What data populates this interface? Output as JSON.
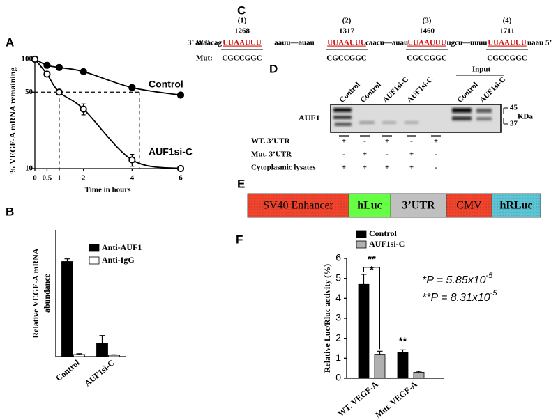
{
  "chart_data": [
    {
      "type": "line",
      "panel_label": "A",
      "y_label": "% VEGF-A mRNA remaining",
      "x_label": "Time in hours",
      "log_y": true,
      "x": [
        0,
        0.5,
        1,
        2,
        4,
        6
      ],
      "series": [
        {
          "name": "Control",
          "color": "#000000",
          "marker": "filled",
          "values": [
            100,
            88,
            84,
            77,
            55,
            47
          ],
          "errors": [
            0,
            0,
            0,
            0,
            1.5,
            2.5
          ]
        },
        {
          "name": "AUF1si-C",
          "color": "#000000",
          "marker": "open",
          "values": [
            100,
            73,
            50,
            35,
            12,
            10
          ],
          "errors": [
            0,
            2,
            0,
            4,
            1.5,
            0
          ]
        }
      ],
      "xlim": [
        0,
        6
      ],
      "ylim": [
        10,
        100
      ],
      "xticks": [
        0,
        0.5,
        1,
        2,
        4,
        6
      ],
      "yticks": [
        10,
        50,
        100
      ],
      "guides": {
        "x": [
          1,
          4.3
        ],
        "y": 50
      }
    },
    {
      "type": "bar",
      "panel_label": "B",
      "y_label": [
        "Relative VEGF-A mRNA",
        "abundance"
      ],
      "categories": [
        "Control",
        "AUF1si-C"
      ],
      "series": [
        {
          "name": "Anti-AUF1",
          "color": "#000000",
          "values": [
            3.6,
            0.5
          ],
          "errors": [
            0.1,
            0.3
          ]
        },
        {
          "name": "Anti-IgG",
          "color": "#ffffff",
          "values": [
            0.08,
            0.05
          ],
          "errors": [
            0.03,
            0.02
          ]
        }
      ],
      "ylim": [
        0,
        4.8
      ]
    },
    {
      "type": "bar",
      "panel_label": "F",
      "y_label": "Relative Luc/Rluc activity (%)",
      "categories": [
        "WT. VEGF-A",
        "Mut. VEGF-A"
      ],
      "series": [
        {
          "name": "Control",
          "color": "#000000",
          "values": [
            4.7,
            1.3
          ],
          "errors": [
            0.5,
            0.12
          ]
        },
        {
          "name": "AUF1si-C",
          "color": "#b0b0b0",
          "values": [
            1.2,
            0.3
          ],
          "errors": [
            0.15,
            0.05
          ]
        }
      ],
      "ylim": [
        0,
        6
      ],
      "yticks": [
        0,
        1,
        2,
        3,
        4,
        5,
        6
      ],
      "annotations": [
        "**",
        "*",
        "**"
      ],
      "stats": [
        {
          "text": "*P = 5.85x10",
          "exponent": "-5"
        },
        {
          "text": "**P = 8.31x10",
          "exponent": "-5"
        }
      ]
    }
  ],
  "panel_c": {
    "label": "C",
    "wt_label": "WT:",
    "mut_label": "Mut:",
    "flanks": [
      "3’ aaaacag",
      "aauu—auau",
      "caacu—auau",
      "ugcu—uuuu",
      "uaau 5’"
    ],
    "sites": [
      {
        "number": "(1)",
        "position": "1268",
        "motif": "UUAAUUU",
        "mutant": "CGCCGGC"
      },
      {
        "number": "(2)",
        "position": "1317",
        "motif": "UUAAUUU",
        "mutant": "CGCCGGC"
      },
      {
        "number": "(3)",
        "position": "1460",
        "motif": "UUAAUUU",
        "mutant": "CGCCGGC"
      },
      {
        "number": "(4)",
        "position": "1711",
        "motif": "UUAAUUU",
        "mutant": "CGCCGGC"
      }
    ]
  },
  "panel_d": {
    "label": "D",
    "protein": "AUF1",
    "lanes": [
      "Control",
      "Control",
      "AUF1si-C",
      "AUF1si-C"
    ],
    "input_label": "Input",
    "input_lanes": [
      "Control",
      "AUF1si-C"
    ],
    "markers": [
      "45",
      "37"
    ],
    "unit": "KDa",
    "rows": [
      {
        "name": "WT. 3’UTR",
        "marks": [
          "+",
          "-",
          "+",
          "-",
          "+"
        ]
      },
      {
        "name": "Mut. 3’UTR",
        "marks": [
          "-",
          "+",
          "-",
          "+",
          "-"
        ]
      },
      {
        "name": "Cytoplasmic lysates",
        "marks": [
          "+",
          "+",
          "+",
          "+",
          "-"
        ]
      }
    ]
  },
  "panel_e": {
    "label": "E",
    "elements": [
      {
        "text": "SV40 Enhancer",
        "color": "#f0452c"
      },
      {
        "text": "hLuc",
        "color": "#66ff44"
      },
      {
        "text": "3’UTR",
        "color": "#c0c0c0"
      },
      {
        "text": "CMV",
        "color": "#f0452c"
      },
      {
        "text": "hRLuc",
        "color": "#5cc4d4"
      }
    ]
  }
}
